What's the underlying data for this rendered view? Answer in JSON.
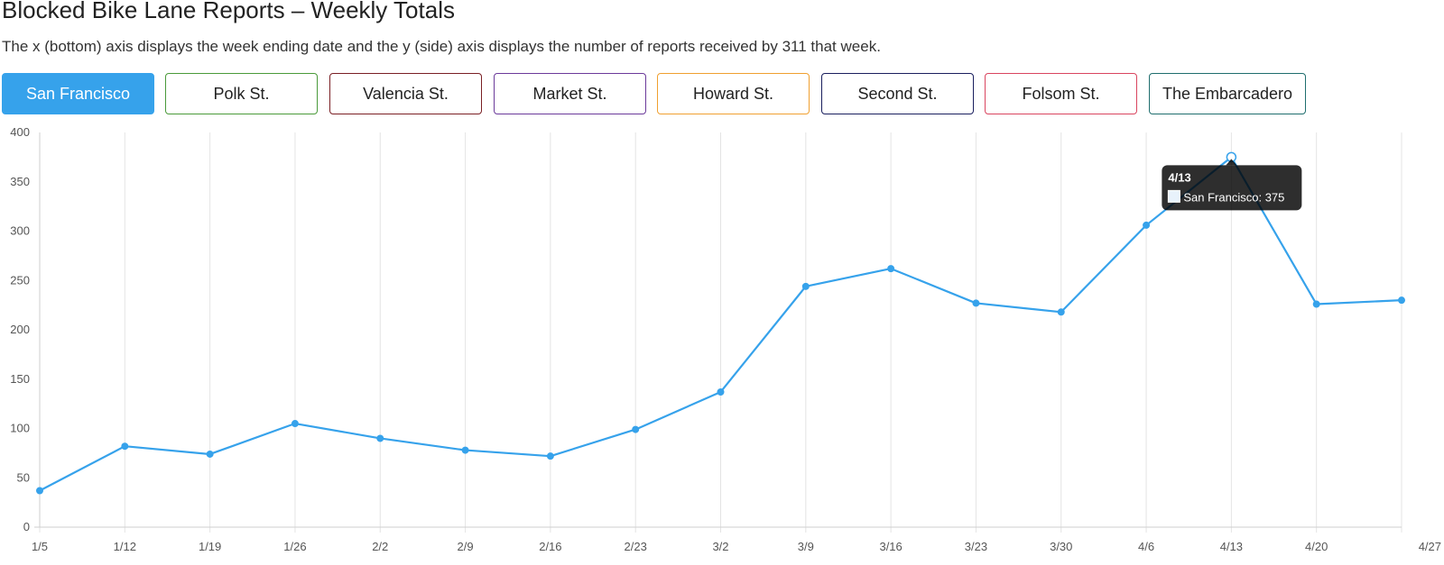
{
  "header": {
    "title": "Blocked Bike Lane Reports – Weekly Totals",
    "subtitle": "The x (bottom) axis displays the week ending date and the y (side) axis displays the number of reports received by 311 that week."
  },
  "filters": [
    {
      "label": "San Francisco",
      "color": "#36a2eb",
      "active": true
    },
    {
      "label": "Polk St.",
      "color": "#4a9a3a",
      "active": false
    },
    {
      "label": "Valencia St.",
      "color": "#7a1f24",
      "active": false
    },
    {
      "label": "Market St.",
      "color": "#6b3a9a",
      "active": false
    },
    {
      "label": "Howard St.",
      "color": "#f0a030",
      "active": false
    },
    {
      "label": "Second St.",
      "color": "#1a1f5e",
      "active": false
    },
    {
      "label": "Folsom St.",
      "color": "#d9455f",
      "active": false
    },
    {
      "label": "The Embarcadero",
      "color": "#1f6e6e",
      "active": false
    }
  ],
  "chart_data": {
    "type": "line",
    "categories": [
      "1/5",
      "1/12",
      "1/19",
      "1/26",
      "2/2",
      "2/9",
      "2/16",
      "2/23",
      "3/2",
      "3/9",
      "3/16",
      "3/23",
      "3/30",
      "4/6",
      "4/13",
      "4/20",
      "4/27"
    ],
    "series": [
      {
        "name": "San Francisco",
        "color": "#36a2eb",
        "values": [
          37,
          82,
          74,
          105,
          90,
          78,
          72,
          99,
          137,
          244,
          262,
          227,
          218,
          306,
          375,
          226,
          230
        ]
      }
    ],
    "ylim": [
      0,
      400
    ],
    "yticks": [
      0,
      50,
      100,
      150,
      200,
      250,
      300,
      350,
      400
    ],
    "grid": "vertical",
    "legend": "none",
    "tooltip": {
      "title": "4/13",
      "label": "San Francisco: 375"
    }
  }
}
